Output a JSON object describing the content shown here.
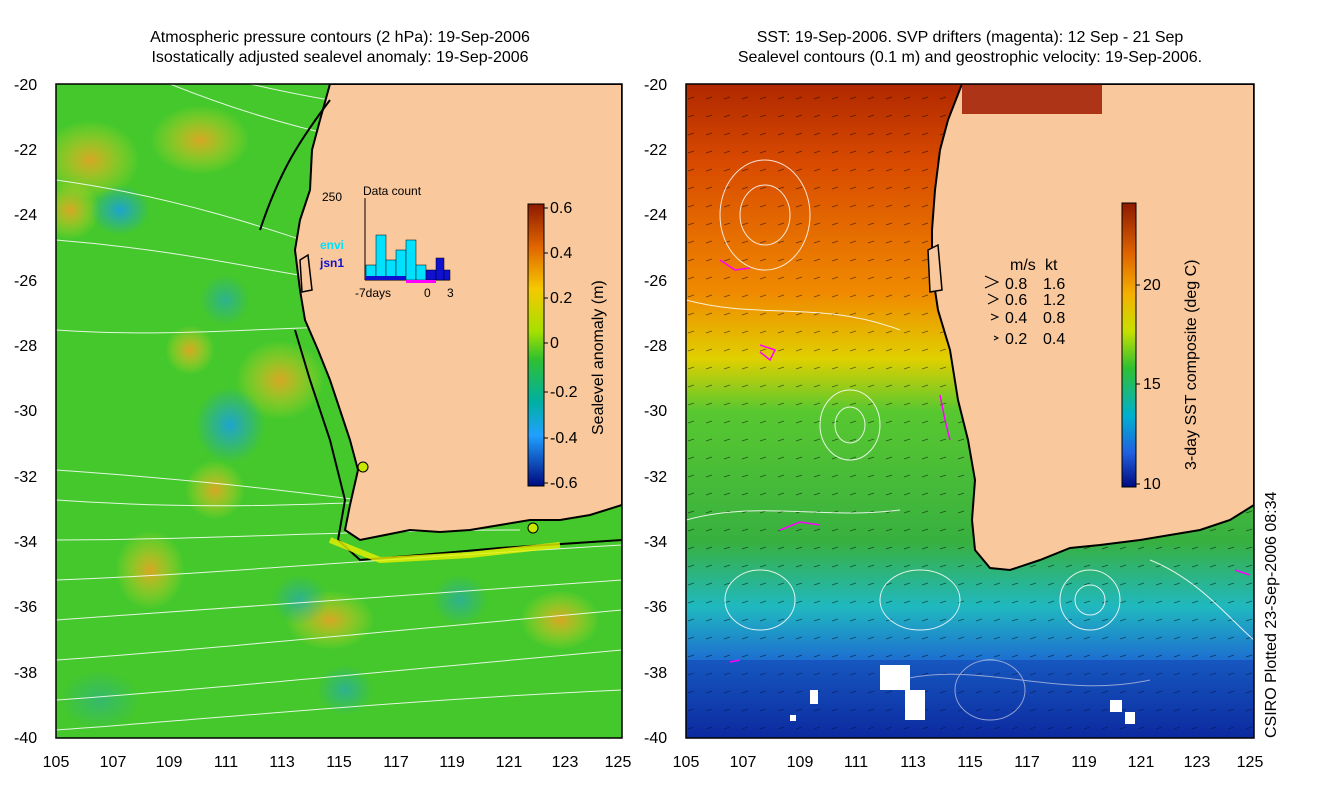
{
  "left_panel": {
    "title_line1": "Atmospheric pressure contours (2 hPa): 19-Sep-2006",
    "title_line2": "Isostatically adjusted sealevel anomaly: 19-Sep-2006",
    "colorbar_label": "Sealevel anomaly (m)",
    "colorbar_ticks": [
      "0.6",
      "0.4",
      "0.2",
      "0",
      "-0.2",
      "-0.4",
      "-0.6"
    ],
    "inset": {
      "title": "Data count",
      "y_label": "250",
      "x_labels": [
        "-7days",
        "0",
        "3"
      ],
      "legend": [
        {
          "text": "envi",
          "color": "#00e0ff"
        },
        {
          "text": "jsn1",
          "color": "#1010d0"
        }
      ]
    }
  },
  "right_panel": {
    "title_line1": "SST: 19-Sep-2006. SVP drifters (magenta): 12 Sep - 21 Sep",
    "title_line2": "Sealevel contours (0.1 m) and geostrophic velocity: 19-Sep-2006.",
    "colorbar_label": "3-day SST composite (deg C)",
    "colorbar_ticks": [
      "20",
      "15",
      "10"
    ],
    "velocity_legend": {
      "headers": [
        "m/s",
        "kt"
      ],
      "rows": [
        [
          "0.8",
          "1.6"
        ],
        [
          "0.6",
          "1.2"
        ],
        [
          "0.4",
          "0.8"
        ],
        [
          "0.2",
          "0.4"
        ]
      ]
    }
  },
  "axes": {
    "y_ticks": [
      "-20",
      "-22",
      "-24",
      "-26",
      "-28",
      "-30",
      "-32",
      "-34",
      "-36",
      "-38",
      "-40"
    ],
    "x_ticks": [
      "105",
      "107",
      "109",
      "111",
      "113",
      "115",
      "117",
      "119",
      "121",
      "123",
      "125"
    ]
  },
  "credit": "CSIRO Plotted 23-Sep-2006 08:34",
  "colors": {
    "land": "#f9c89c",
    "ocean_green": "#4ccd2a",
    "sst_warm": "#d24a00",
    "sst_cold": "#1a3ca8",
    "drifter": "#ff00ff"
  }
}
